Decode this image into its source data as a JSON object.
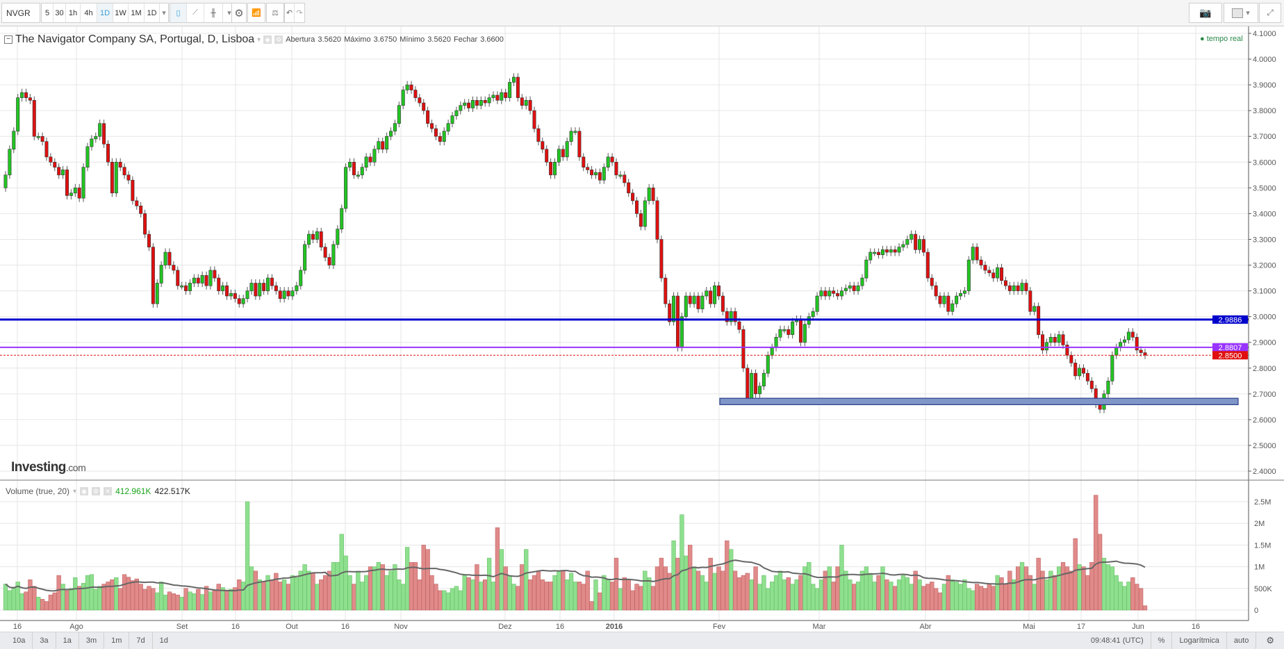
{
  "toolbar": {
    "symbol": "NVGR",
    "intervals": [
      "5",
      "30",
      "1h",
      "4h",
      "1D",
      "1W",
      "1M",
      "1D"
    ],
    "active_interval": "1D",
    "right_buttons": [
      "camera-icon",
      "color-picker",
      "fullscreen-icon"
    ]
  },
  "header": {
    "title": "The Navigator Company SA, Portugal, D, Lisboa",
    "open_label": "Abertura",
    "open": "3.5620",
    "high_label": "Máximo",
    "high": "3.6750",
    "low_label": "Mínimo",
    "low": "3.5620",
    "close_label": "Fechar",
    "close": "3.6600",
    "realtime": "tempo real"
  },
  "volume_header": {
    "title": "Volume (true, 20)",
    "value1": "412.961K",
    "value2": "422.517K"
  },
  "logo": {
    "main": "Investing",
    "suffix": ".com"
  },
  "footer": {
    "ranges": [
      "10a",
      "3a",
      "1a",
      "3m",
      "1m",
      "7d",
      "1d"
    ],
    "time": "09:48:41 (UTC)",
    "percent": "%",
    "log": "Logarítmica",
    "auto": "auto"
  },
  "colors": {
    "up": "#22c522",
    "down": "#e01010",
    "vol_up": "#8ee08e",
    "vol_down": "#e08a8a",
    "blue_line": "#0000cc",
    "purple_line": "#9933ff",
    "red_line": "#e01010",
    "zone": "#8095c8"
  },
  "chart_data": {
    "type": "candlestick",
    "price_axis": {
      "min": 2.35,
      "max": 4.1,
      "ticks": [
        "4.1000",
        "4.0000",
        "3.9000",
        "3.8000",
        "3.7000",
        "3.6000",
        "3.5000",
        "3.4000",
        "3.3000",
        "3.2000",
        "3.1000",
        "3.0000",
        "2.9000",
        "2.8000",
        "2.7000",
        "2.6000",
        "2.5000",
        "2.4000"
      ]
    },
    "volume_axis": {
      "ticks": [
        "2.5M",
        "2M",
        "1.5M",
        "1M",
        "500K",
        "0"
      ],
      "max_k": 2500
    },
    "date_ticks": [
      "16",
      "Ago",
      "Set",
      "16",
      "Out",
      "16",
      "Nov",
      "Dez",
      "16",
      "2016",
      "Fev",
      "Mar",
      "Abr",
      "Mai",
      "17",
      "Jun",
      "16"
    ],
    "first_open": 3.5,
    "closes": [
      3.55,
      3.65,
      3.72,
      3.85,
      3.87,
      3.85,
      3.84,
      3.7,
      3.7,
      3.68,
      3.62,
      3.6,
      3.58,
      3.55,
      3.57,
      3.47,
      3.48,
      3.5,
      3.46,
      3.58,
      3.66,
      3.69,
      3.7,
      3.75,
      3.67,
      3.6,
      3.48,
      3.6,
      3.58,
      3.55,
      3.53,
      3.45,
      3.43,
      3.4,
      3.32,
      3.27,
      3.05,
      3.13,
      3.2,
      3.25,
      3.2,
      3.18,
      3.12,
      3.12,
      3.1,
      3.13,
      3.15,
      3.13,
      3.16,
      3.12,
      3.18,
      3.15,
      3.1,
      3.12,
      3.08,
      3.09,
      3.07,
      3.05,
      3.07,
      3.1,
      3.13,
      3.08,
      3.13,
      3.1,
      3.15,
      3.12,
      3.1,
      3.07,
      3.1,
      3.08,
      3.1,
      3.12,
      3.18,
      3.28,
      3.32,
      3.3,
      3.33,
      3.27,
      3.23,
      3.2,
      3.28,
      3.34,
      3.42,
      3.58,
      3.6,
      3.55,
      3.55,
      3.58,
      3.62,
      3.6,
      3.65,
      3.68,
      3.65,
      3.7,
      3.72,
      3.75,
      3.82,
      3.88,
      3.9,
      3.88,
      3.85,
      3.83,
      3.8,
      3.75,
      3.73,
      3.7,
      3.68,
      3.72,
      3.75,
      3.78,
      3.8,
      3.82,
      3.83,
      3.81,
      3.84,
      3.82,
      3.84,
      3.83,
      3.85,
      3.86,
      3.84,
      3.87,
      3.85,
      3.91,
      3.93,
      3.85,
      3.82,
      3.84,
      3.8,
      3.73,
      3.68,
      3.65,
      3.6,
      3.55,
      3.6,
      3.65,
      3.62,
      3.68,
      3.72,
      3.72,
      3.62,
      3.58,
      3.57,
      3.55,
      3.56,
      3.53,
      3.58,
      3.62,
      3.6,
      3.55,
      3.55,
      3.52,
      3.48,
      3.45,
      3.4,
      3.35,
      3.45,
      3.5,
      3.45,
      3.3,
      3.15,
      3.05,
      2.98,
      3.08,
      2.88,
      3.0,
      3.08,
      3.05,
      3.08,
      3.03,
      3.08,
      3.1,
      3.05,
      3.12,
      3.08,
      3.02,
      2.98,
      3.02,
      2.98,
      2.95,
      2.8,
      2.68,
      2.78,
      2.7,
      2.73,
      2.78,
      2.85,
      2.88,
      2.92,
      2.95,
      2.95,
      2.93,
      2.98,
      2.99,
      2.9,
      2.97,
      3.0,
      3.02,
      3.08,
      3.1,
      3.08,
      3.1,
      3.09,
      3.08,
      3.1,
      3.11,
      3.12,
      3.1,
      3.12,
      3.15,
      3.22,
      3.25,
      3.25,
      3.24,
      3.26,
      3.25,
      3.26,
      3.25,
      3.27,
      3.28,
      3.3,
      3.32,
      3.26,
      3.3,
      3.25,
      3.15,
      3.12,
      3.08,
      3.05,
      3.08,
      3.02,
      3.05,
      3.08,
      3.09,
      3.1,
      3.22,
      3.27,
      3.22,
      3.2,
      3.18,
      3.17,
      3.15,
      3.19,
      3.14,
      3.12,
      3.1,
      3.12,
      3.1,
      3.13,
      3.1,
      3.02,
      3.04,
      2.93,
      2.87,
      2.9,
      2.92,
      2.9,
      2.93,
      2.89,
      2.85,
      2.82,
      2.77,
      2.8,
      2.78,
      2.75,
      2.72,
      2.66,
      2.64,
      2.7,
      2.75,
      2.85,
      2.88,
      2.9,
      2.91,
      2.94,
      2.92,
      2.87,
      2.86,
      2.85
    ],
    "volumes_k": [
      600,
      450,
      500,
      650,
      380,
      420,
      700,
      550,
      300,
      250,
      200,
      350,
      400,
      800,
      600,
      450,
      500,
      750,
      550,
      620,
      800,
      820,
      480,
      550,
      600,
      650,
      700,
      750,
      500,
      820,
      760,
      680,
      720,
      600,
      480,
      550,
      500,
      400,
      650,
      350,
      420,
      380,
      350,
      300,
      500,
      420,
      380,
      480,
      360,
      550,
      420,
      450,
      600,
      520,
      440,
      480,
      520,
      700,
      650,
      2500,
      1000,
      900,
      700,
      650,
      800,
      700,
      850,
      650,
      700,
      600,
      800,
      750,
      900,
      1050,
      900,
      850,
      600,
      700,
      800,
      900,
      1100,
      1100,
      1750,
      1250,
      800,
      600,
      900,
      650,
      800,
      1000,
      1000,
      1100,
      1050,
      800,
      900,
      1050,
      700,
      600,
      1450,
      1100,
      1100,
      700,
      1500,
      1400,
      800,
      600,
      450,
      450,
      400,
      500,
      550,
      450,
      800,
      750,
      700,
      1050,
      650,
      700,
      1200,
      650,
      1900,
      1400,
      1000,
      800,
      600,
      550,
      1050,
      1400,
      700,
      800,
      900,
      700,
      650,
      650,
      800,
      900,
      900,
      700,
      850,
      650,
      650,
      600,
      900,
      200,
      700,
      400,
      800,
      700,
      650,
      1200,
      500,
      750,
      700,
      450,
      600,
      550,
      900,
      750,
      550,
      1000,
      1200,
      1000,
      850,
      1600,
      1200,
      2200,
      1250,
      1500,
      1000,
      900,
      800,
      650,
      1200,
      850,
      1000,
      900,
      1600,
      1400,
      900,
      750,
      800,
      850,
      700,
      1000,
      600,
      800,
      500,
      650,
      800,
      900,
      700,
      750,
      600,
      700,
      800,
      1000,
      1100,
      600,
      500,
      700,
      900,
      1000,
      650,
      1000,
      1500,
      900,
      700,
      600,
      650,
      900,
      1000,
      850,
      650,
      800,
      1000,
      700,
      650,
      550,
      700,
      800,
      750,
      600,
      900,
      700,
      550,
      600,
      650,
      500,
      400,
      600,
      800,
      700,
      650,
      600,
      700,
      500,
      450,
      600,
      550,
      500,
      600,
      550,
      800,
      750,
      600,
      900,
      700,
      1000,
      1100,
      1000,
      800,
      600,
      1200,
      900,
      700,
      900,
      800,
      1000,
      1100,
      1000,
      900,
      1650,
      1050,
      1000,
      800,
      1100,
      2650,
      1750,
      1200,
      1050,
      1000,
      800,
      650,
      550,
      650,
      750,
      600,
      500,
      100
    ],
    "volume_ma_period": 20,
    "hlines": [
      {
        "price": 2.9886,
        "label": "2.9886",
        "color": "#0000cc"
      },
      {
        "price": 2.8807,
        "label": "2.8807",
        "color": "#9933ff"
      },
      {
        "price": 2.85,
        "label": "2.8500",
        "color": "#e01010",
        "dashed": true
      }
    ],
    "zone": {
      "top": 2.683,
      "bottom": 2.658
    }
  }
}
